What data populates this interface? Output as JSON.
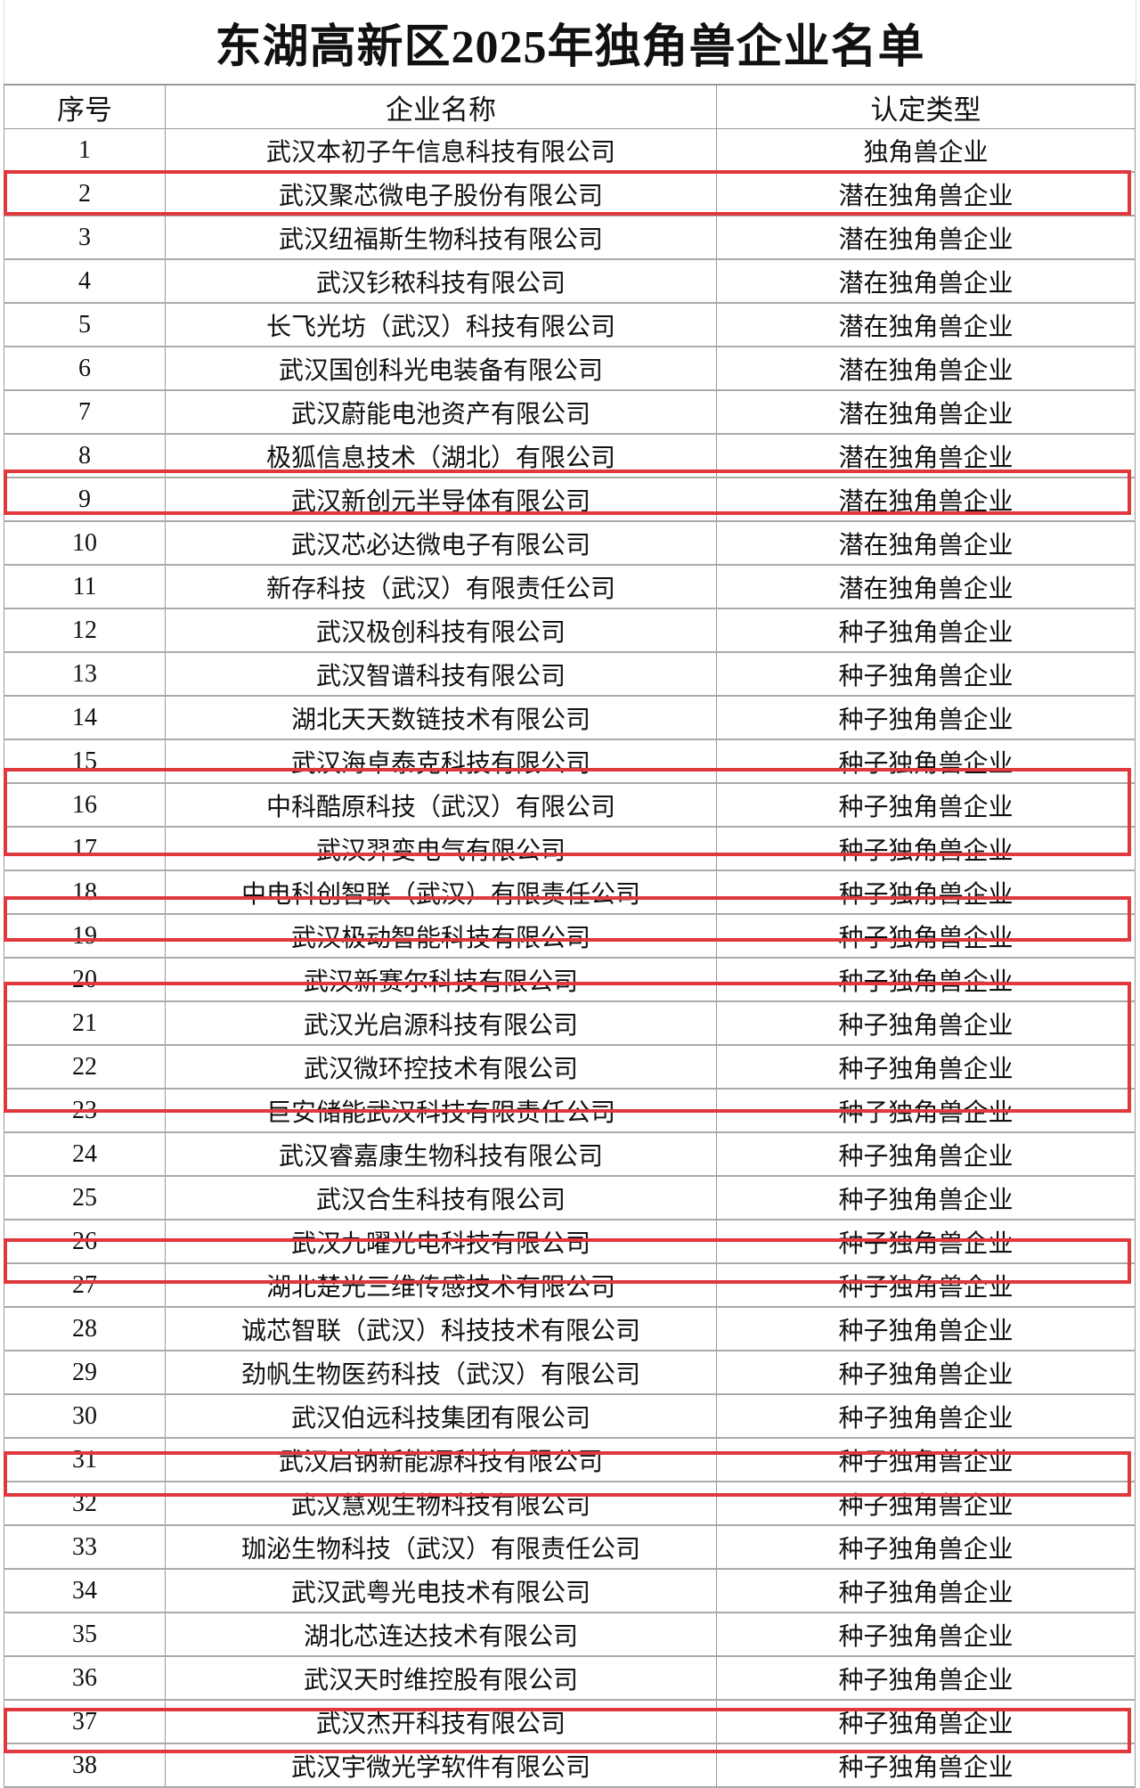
{
  "title": "东湖高新区2025年独角兽企业名单",
  "highlight_color": "#e0383c",
  "table": {
    "headers": [
      "序号",
      "企业名称",
      "认定类型"
    ],
    "rows": [
      [
        "1",
        "武汉本初子午信息科技有限公司",
        "独角兽企业"
      ],
      [
        "2",
        "武汉聚芯微电子股份有限公司",
        "潜在独角兽企业"
      ],
      [
        "3",
        "武汉纽福斯生物科技有限公司",
        "潜在独角兽企业"
      ],
      [
        "4",
        "武汉钐秾科技有限公司",
        "潜在独角兽企业"
      ],
      [
        "5",
        "长飞光坊（武汉）科技有限公司",
        "潜在独角兽企业"
      ],
      [
        "6",
        "武汉国创科光电装备有限公司",
        "潜在独角兽企业"
      ],
      [
        "7",
        "武汉蔚能电池资产有限公司",
        "潜在独角兽企业"
      ],
      [
        "8",
        "极狐信息技术（湖北）有限公司",
        "潜在独角兽企业"
      ],
      [
        "9",
        "武汉新创元半导体有限公司",
        "潜在独角兽企业"
      ],
      [
        "10",
        "武汉芯必达微电子有限公司",
        "潜在独角兽企业"
      ],
      [
        "11",
        "新存科技（武汉）有限责任公司",
        "潜在独角兽企业"
      ],
      [
        "12",
        "武汉极创科技有限公司",
        "种子独角兽企业"
      ],
      [
        "13",
        "武汉智谱科技有限公司",
        "种子独角兽企业"
      ],
      [
        "14",
        "湖北天天数链技术有限公司",
        "种子独角兽企业"
      ],
      [
        "15",
        "武汉海卓泰克科技有限公司",
        "种子独角兽企业"
      ],
      [
        "16",
        "中科酷原科技（武汉）有限公司",
        "种子独角兽企业"
      ],
      [
        "17",
        "武汉羿变电气有限公司",
        "种子独角兽企业"
      ],
      [
        "18",
        "中电科创智联（武汉）有限责任公司",
        "种子独角兽企业"
      ],
      [
        "19",
        "武汉极动智能科技有限公司",
        "种子独角兽企业"
      ],
      [
        "20",
        "武汉新赛尔科技有限公司",
        "种子独角兽企业"
      ],
      [
        "21",
        "武汉光启源科技有限公司",
        "种子独角兽企业"
      ],
      [
        "22",
        "武汉微环控技术有限公司",
        "种子独角兽企业"
      ],
      [
        "23",
        "巨安储能武汉科技有限责任公司",
        "种子独角兽企业"
      ],
      [
        "24",
        "武汉睿嘉康生物科技有限公司",
        "种子独角兽企业"
      ],
      [
        "25",
        "武汉合生科技有限公司",
        "种子独角兽企业"
      ],
      [
        "26",
        "武汉九曜光电科技有限公司",
        "种子独角兽企业"
      ],
      [
        "27",
        "湖北楚光三维传感技术有限公司",
        "种子独角兽企业"
      ],
      [
        "28",
        "诚芯智联（武汉）科技技术有限公司",
        "种子独角兽企业"
      ],
      [
        "29",
        "劲帆生物医药科技（武汉）有限公司",
        "种子独角兽企业"
      ],
      [
        "30",
        "武汉伯远科技集团有限公司",
        "种子独角兽企业"
      ],
      [
        "31",
        "武汉启钠新能源科技有限公司",
        "种子独角兽企业"
      ],
      [
        "32",
        "武汉慧观生物科技有限公司",
        "种子独角兽企业"
      ],
      [
        "33",
        "珈泌生物科技（武汉）有限责任公司",
        "种子独角兽企业"
      ],
      [
        "34",
        "武汉武粤光电技术有限公司",
        "种子独角兽企业"
      ],
      [
        "35",
        "湖北芯连达技术有限公司",
        "种子独角兽企业"
      ],
      [
        "36",
        "武汉天时维控股有限公司",
        "种子独角兽企业"
      ],
      [
        "37",
        "武汉杰开科技有限公司",
        "种子独角兽企业"
      ],
      [
        "38",
        "武汉宇微光学软件有限公司",
        "种子独角兽企业"
      ]
    ],
    "highlighted_row_groups": [
      [
        2
      ],
      [
        9
      ],
      [
        16,
        17
      ],
      [
        19
      ],
      [
        21,
        22,
        23
      ],
      [
        27
      ],
      [
        32
      ],
      [
        38
      ]
    ]
  }
}
